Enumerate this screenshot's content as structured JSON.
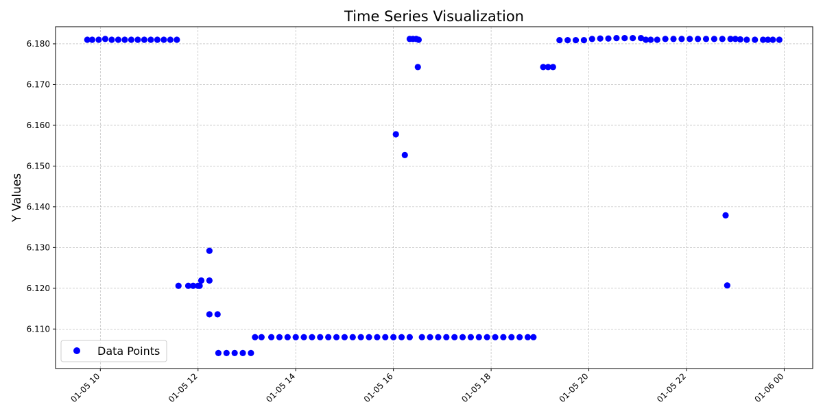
{
  "chart_data": {
    "type": "scatter",
    "title": "Time Series Visualization",
    "xlabel": "",
    "ylabel": "Y Values",
    "x_ticks": [
      "01-05 10",
      "01-05 12",
      "01-05 14",
      "01-05 16",
      "01-05 18",
      "01-05 20",
      "01-05 22",
      "01-06 00"
    ],
    "y_ticks": [
      "6.110",
      "6.120",
      "6.130",
      "6.140",
      "6.150",
      "6.160",
      "6.170",
      "6.180"
    ],
    "xlim": [
      "2024-01-05 09:05",
      "2024-01-06 00:35"
    ],
    "ylim": [
      6.1003,
      6.1842
    ],
    "grid": true,
    "legend_position": "lower-left",
    "colors": {
      "points": "#0000ff",
      "grid": "#b0b0b0"
    },
    "series": [
      {
        "name": "Data Points",
        "x": [
          "2024-01-05 09:44",
          "2024-01-05 09:50",
          "2024-01-05 09:58",
          "2024-01-05 10:06",
          "2024-01-05 10:14",
          "2024-01-05 10:22",
          "2024-01-05 10:30",
          "2024-01-05 10:38",
          "2024-01-05 10:46",
          "2024-01-05 10:54",
          "2024-01-05 11:02",
          "2024-01-05 11:10",
          "2024-01-05 11:18",
          "2024-01-05 11:26",
          "2024-01-05 11:34",
          "2024-01-05 11:36",
          "2024-01-05 11:48",
          "2024-01-05 11:54",
          "2024-01-05 12:00",
          "2024-01-05 12:02",
          "2024-01-05 12:04",
          "2024-01-05 12:14",
          "2024-01-05 12:14",
          "2024-01-05 12:14",
          "2024-01-05 12:24",
          "2024-01-05 12:25",
          "2024-01-05 12:35",
          "2024-01-05 12:45",
          "2024-01-05 12:55",
          "2024-01-05 13:05",
          "2024-01-05 13:10",
          "2024-01-05 13:18",
          "2024-01-05 13:30",
          "2024-01-05 13:40",
          "2024-01-05 13:50",
          "2024-01-05 14:00",
          "2024-01-05 14:10",
          "2024-01-05 14:20",
          "2024-01-05 14:30",
          "2024-01-05 14:40",
          "2024-01-05 14:50",
          "2024-01-05 15:00",
          "2024-01-05 15:10",
          "2024-01-05 15:20",
          "2024-01-05 15:30",
          "2024-01-05 15:40",
          "2024-01-05 15:50",
          "2024-01-05 16:00",
          "2024-01-05 16:10",
          "2024-01-05 16:20",
          "2024-01-05 16:03",
          "2024-01-05 16:14",
          "2024-01-05 16:20",
          "2024-01-05 16:24",
          "2024-01-05 16:28",
          "2024-01-05 16:31",
          "2024-01-05 16:30",
          "2024-01-05 16:35",
          "2024-01-05 16:45",
          "2024-01-05 16:55",
          "2024-01-05 17:05",
          "2024-01-05 17:15",
          "2024-01-05 17:25",
          "2024-01-05 17:35",
          "2024-01-05 17:45",
          "2024-01-05 17:55",
          "2024-01-05 18:05",
          "2024-01-05 18:15",
          "2024-01-05 18:25",
          "2024-01-05 18:35",
          "2024-01-05 18:45",
          "2024-01-05 18:52",
          "2024-01-05 19:04",
          "2024-01-05 19:10",
          "2024-01-05 19:16",
          "2024-01-05 19:24",
          "2024-01-05 19:34",
          "2024-01-05 19:44",
          "2024-01-05 19:54",
          "2024-01-05 20:04",
          "2024-01-05 20:14",
          "2024-01-05 20:24",
          "2024-01-05 20:34",
          "2024-01-05 20:44",
          "2024-01-05 20:54",
          "2024-01-05 21:04",
          "2024-01-05 21:10",
          "2024-01-05 21:16",
          "2024-01-05 21:24",
          "2024-01-05 21:34",
          "2024-01-05 21:44",
          "2024-01-05 21:54",
          "2024-01-05 22:04",
          "2024-01-05 22:14",
          "2024-01-05 22:24",
          "2024-01-05 22:34",
          "2024-01-05 22:44",
          "2024-01-05 22:48",
          "2024-01-05 22:50",
          "2024-01-05 22:54",
          "2024-01-05 23:00",
          "2024-01-05 23:06",
          "2024-01-05 23:14",
          "2024-01-05 23:24",
          "2024-01-05 23:34",
          "2024-01-05 23:40",
          "2024-01-05 23:46",
          "2024-01-05 23:54"
        ],
        "y": [
          6.181,
          6.181,
          6.181,
          6.1812,
          6.181,
          6.181,
          6.181,
          6.181,
          6.181,
          6.181,
          6.181,
          6.181,
          6.181,
          6.181,
          6.181,
          6.1206,
          6.1206,
          6.1206,
          6.1206,
          6.1206,
          6.1219,
          6.1292,
          6.1219,
          6.1136,
          6.1136,
          6.1041,
          6.1041,
          6.1041,
          6.1041,
          6.1041,
          6.108,
          6.108,
          6.108,
          6.108,
          6.108,
          6.108,
          6.108,
          6.108,
          6.108,
          6.108,
          6.108,
          6.108,
          6.108,
          6.108,
          6.108,
          6.108,
          6.108,
          6.108,
          6.108,
          6.108,
          6.1578,
          6.1527,
          6.1812,
          6.1812,
          6.1812,
          6.181,
          6.1743,
          6.108,
          6.108,
          6.108,
          6.108,
          6.108,
          6.108,
          6.108,
          6.108,
          6.108,
          6.108,
          6.108,
          6.108,
          6.108,
          6.108,
          6.108,
          6.1743,
          6.1743,
          6.1743,
          6.1809,
          6.1809,
          6.1809,
          6.1809,
          6.1812,
          6.1813,
          6.1813,
          6.1814,
          6.1814,
          6.1814,
          6.1814,
          6.181,
          6.181,
          6.181,
          6.1812,
          6.1812,
          6.1812,
          6.1812,
          6.1812,
          6.1812,
          6.1812,
          6.1812,
          6.1379,
          6.1207,
          6.1812,
          6.1812,
          6.1811,
          6.181,
          6.181,
          6.181,
          6.181,
          6.181,
          6.181
        ]
      }
    ]
  }
}
